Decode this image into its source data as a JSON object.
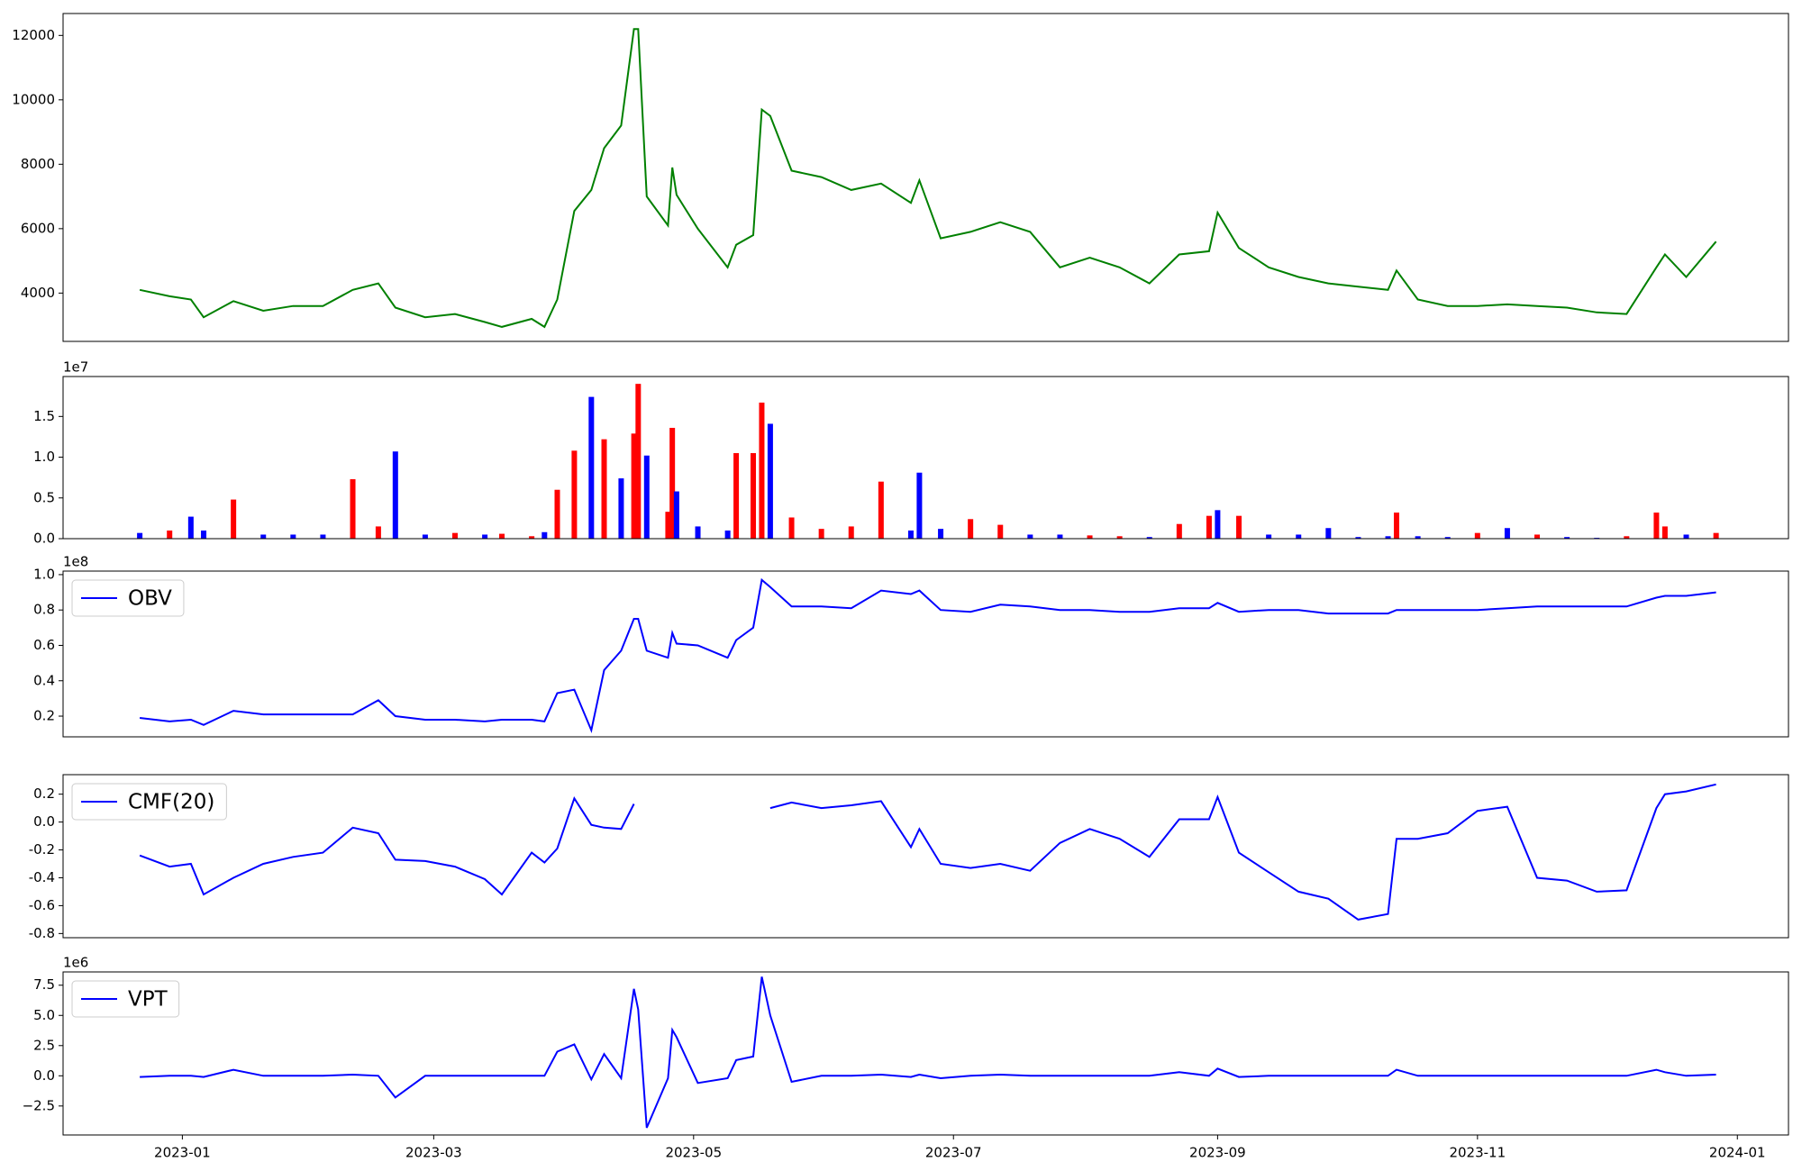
{
  "chart_data": [
    {
      "type": "line",
      "x": [
        "2022-12-22",
        "2022-12-29",
        "2023-01-03",
        "2023-01-06",
        "2023-01-13",
        "2023-01-20",
        "2023-01-27",
        "2023-02-03",
        "2023-02-10",
        "2023-02-16",
        "2023-02-20",
        "2023-02-27",
        "2023-03-06",
        "2023-03-13",
        "2023-03-17",
        "2023-03-24",
        "2023-03-27",
        "2023-03-30",
        "2023-04-03",
        "2023-04-07",
        "2023-04-10",
        "2023-04-14",
        "2023-04-17",
        "2023-04-18",
        "2023-04-20",
        "2023-04-25",
        "2023-04-26",
        "2023-04-27",
        "2023-05-02",
        "2023-05-09",
        "2023-05-11",
        "2023-05-15",
        "2023-05-17",
        "2023-05-19",
        "2023-05-24",
        "2023-05-31",
        "2023-06-07",
        "2023-06-14",
        "2023-06-21",
        "2023-06-23",
        "2023-06-28",
        "2023-07-05",
        "2023-07-12",
        "2023-07-19",
        "2023-07-26",
        "2023-08-02",
        "2023-08-09",
        "2023-08-16",
        "2023-08-23",
        "2023-08-30",
        "2023-09-01",
        "2023-09-06",
        "2023-09-13",
        "2023-09-20",
        "2023-09-27",
        "2023-10-04",
        "2023-10-11",
        "2023-10-13",
        "2023-10-18",
        "2023-10-25",
        "2023-11-01",
        "2023-11-08",
        "2023-11-15",
        "2023-11-22",
        "2023-11-29",
        "2023-12-06",
        "2023-12-13",
        "2023-12-15",
        "2023-12-20",
        "2023-12-27"
      ],
      "series": [
        {
          "color": "#008000",
          "values": [
            4100,
            3900,
            3800,
            3250,
            3750,
            3450,
            3600,
            3600,
            4100,
            4300,
            3550,
            3250,
            3350,
            3100,
            2950,
            3200,
            2950,
            3800,
            6550,
            7200,
            8500,
            9200,
            12200,
            12200,
            7000,
            6100,
            7900,
            7050,
            6000,
            4800,
            5500,
            5800,
            9700,
            9500,
            7800,
            7600,
            7200,
            7400,
            6800,
            7500,
            5700,
            5900,
            6200,
            5900,
            4800,
            5100,
            4800,
            4300,
            5200,
            5300,
            6500,
            5400,
            4800,
            4500,
            4300,
            4200,
            4100,
            4700,
            3800,
            3600,
            3600,
            3650,
            3600,
            3550,
            3400,
            3350,
            4800,
            5200,
            4500,
            5600
          ]
        }
      ],
      "xlim": [
        "2022-12-04",
        "2024-01-13"
      ],
      "ylim": [
        2500,
        12680
      ],
      "yticks": [
        4000,
        6000,
        8000,
        10000,
        12000
      ]
    },
    {
      "type": "bar",
      "x": [
        "2022-12-22",
        "2022-12-29",
        "2023-01-03",
        "2023-01-06",
        "2023-01-13",
        "2023-01-20",
        "2023-01-27",
        "2023-02-03",
        "2023-02-10",
        "2023-02-16",
        "2023-02-20",
        "2023-02-27",
        "2023-03-06",
        "2023-03-13",
        "2023-03-17",
        "2023-03-24",
        "2023-03-27",
        "2023-03-30",
        "2023-04-03",
        "2023-04-07",
        "2023-04-10",
        "2023-04-14",
        "2023-04-17",
        "2023-04-18",
        "2023-04-20",
        "2023-04-25",
        "2023-04-26",
        "2023-04-27",
        "2023-05-02",
        "2023-05-09",
        "2023-05-11",
        "2023-05-15",
        "2023-05-17",
        "2023-05-19",
        "2023-05-24",
        "2023-05-31",
        "2023-06-07",
        "2023-06-14",
        "2023-06-21",
        "2023-06-23",
        "2023-06-28",
        "2023-07-05",
        "2023-07-12",
        "2023-07-19",
        "2023-07-26",
        "2023-08-02",
        "2023-08-09",
        "2023-08-16",
        "2023-08-23",
        "2023-08-30",
        "2023-09-01",
        "2023-09-06",
        "2023-09-13",
        "2023-09-20",
        "2023-09-27",
        "2023-10-04",
        "2023-10-11",
        "2023-10-13",
        "2023-10-18",
        "2023-10-25",
        "2023-11-01",
        "2023-11-08",
        "2023-11-15",
        "2023-11-22",
        "2023-11-29",
        "2023-12-06",
        "2023-12-13",
        "2023-12-15",
        "2023-12-20",
        "2023-12-27"
      ],
      "values": [
        0.07,
        0.1,
        0.27,
        0.1,
        0.48,
        0.05,
        0.05,
        0.05,
        0.73,
        0.15,
        1.07,
        0.05,
        0.07,
        0.05,
        0.06,
        0.03,
        0.08,
        0.6,
        1.08,
        1.74,
        1.22,
        0.74,
        1.29,
        1.9,
        1.02,
        0.33,
        1.36,
        0.58,
        0.15,
        0.1,
        1.05,
        1.05,
        1.67,
        1.41,
        0.26,
        0.12,
        0.15,
        0.7,
        0.1,
        0.81,
        0.12,
        0.24,
        0.17,
        0.05,
        0.05,
        0.04,
        0.03,
        0.02,
        0.18,
        0.28,
        0.35,
        0.28,
        0.05,
        0.05,
        0.13,
        0.02,
        0.03,
        0.32,
        0.03,
        0.02,
        0.07,
        0.13,
        0.05,
        0.02,
        0.01,
        0.03,
        0.32,
        0.15,
        0.05,
        0.07
      ],
      "colors": [
        "#0000ff",
        "#ff0000",
        "#0000ff",
        "#0000ff",
        "#ff0000",
        "#0000ff",
        "#0000ff",
        "#0000ff",
        "#ff0000",
        "#ff0000",
        "#0000ff",
        "#0000ff",
        "#ff0000",
        "#0000ff",
        "#ff0000",
        "#ff0000",
        "#0000ff",
        "#ff0000",
        "#ff0000",
        "#0000ff",
        "#ff0000",
        "#0000ff",
        "#ff0000",
        "#ff0000",
        "#0000ff",
        "#ff0000",
        "#ff0000",
        "#0000ff",
        "#0000ff",
        "#0000ff",
        "#ff0000",
        "#ff0000",
        "#ff0000",
        "#0000ff",
        "#ff0000",
        "#ff0000",
        "#ff0000",
        "#ff0000",
        "#0000ff",
        "#0000ff",
        "#0000ff",
        "#ff0000",
        "#ff0000",
        "#0000ff",
        "#0000ff",
        "#ff0000",
        "#ff0000",
        "#0000ff",
        "#ff0000",
        "#ff0000",
        "#0000ff",
        "#ff0000",
        "#0000ff",
        "#0000ff",
        "#0000ff",
        "#0000ff",
        "#0000ff",
        "#ff0000",
        "#0000ff",
        "#0000ff",
        "#ff0000",
        "#0000ff",
        "#ff0000",
        "#0000ff",
        "#0000ff",
        "#ff0000",
        "#ff0000",
        "#ff0000",
        "#0000ff",
        "#ff0000"
      ],
      "xlim": [
        "2022-12-04",
        "2024-01-13"
      ],
      "ylim": [
        0,
        1.99
      ],
      "y_offset_label": "1e7",
      "yticks": [
        {
          "value": 0,
          "label": "0.0"
        },
        0.5,
        {
          "value": 1,
          "label": "1.0"
        },
        1.5
      ]
    },
    {
      "type": "line",
      "x": [
        "2022-12-22",
        "2022-12-29",
        "2023-01-03",
        "2023-01-06",
        "2023-01-13",
        "2023-01-20",
        "2023-01-27",
        "2023-02-03",
        "2023-02-10",
        "2023-02-16",
        "2023-02-20",
        "2023-02-27",
        "2023-03-06",
        "2023-03-13",
        "2023-03-17",
        "2023-03-24",
        "2023-03-27",
        "2023-03-30",
        "2023-04-03",
        "2023-04-07",
        "2023-04-10",
        "2023-04-14",
        "2023-04-17",
        "2023-04-18",
        "2023-04-20",
        "2023-04-25",
        "2023-04-26",
        "2023-04-27",
        "2023-05-02",
        "2023-05-09",
        "2023-05-11",
        "2023-05-15",
        "2023-05-17",
        "2023-05-19",
        "2023-05-24",
        "2023-05-31",
        "2023-06-07",
        "2023-06-14",
        "2023-06-21",
        "2023-06-23",
        "2023-06-28",
        "2023-07-05",
        "2023-07-12",
        "2023-07-19",
        "2023-07-26",
        "2023-08-02",
        "2023-08-09",
        "2023-08-16",
        "2023-08-23",
        "2023-08-30",
        "2023-09-01",
        "2023-09-06",
        "2023-09-13",
        "2023-09-20",
        "2023-09-27",
        "2023-10-04",
        "2023-10-11",
        "2023-10-13",
        "2023-10-18",
        "2023-10-25",
        "2023-11-01",
        "2023-11-08",
        "2023-11-15",
        "2023-11-22",
        "2023-11-29",
        "2023-12-06",
        "2023-12-13",
        "2023-12-15",
        "2023-12-20",
        "2023-12-27"
      ],
      "series": [
        {
          "name": "OBV",
          "color": "#0000ff",
          "values": [
            0.19,
            0.17,
            0.18,
            0.15,
            0.23,
            0.21,
            0.21,
            0.21,
            0.21,
            0.29,
            0.2,
            0.18,
            0.18,
            0.17,
            0.18,
            0.18,
            0.17,
            0.33,
            0.35,
            0.12,
            0.46,
            0.57,
            0.75,
            0.75,
            0.57,
            0.53,
            0.67,
            0.61,
            0.6,
            0.53,
            0.63,
            0.7,
            0.97,
            0.93,
            0.82,
            0.82,
            0.81,
            0.91,
            0.89,
            0.91,
            0.8,
            0.79,
            0.83,
            0.82,
            0.8,
            0.8,
            0.79,
            0.79,
            0.81,
            0.81,
            0.84,
            0.79,
            0.8,
            0.8,
            0.78,
            0.78,
            0.78,
            0.8,
            0.8,
            0.8,
            0.8,
            0.81,
            0.82,
            0.82,
            0.82,
            0.82,
            0.87,
            0.88,
            0.88,
            0.9
          ]
        }
      ],
      "xlim": [
        "2022-12-04",
        "2024-01-13"
      ],
      "ylim": [
        0.083,
        1.02
      ],
      "y_offset_label": "1e8",
      "legend": "upper left",
      "yticks": [
        0.2,
        0.4,
        0.6,
        0.8,
        {
          "value": 1,
          "label": "1.0"
        }
      ]
    },
    {
      "type": "line",
      "x": [
        "2022-12-22",
        "2022-12-29",
        "2023-01-03",
        "2023-01-06",
        "2023-01-13",
        "2023-01-20",
        "2023-01-27",
        "2023-02-03",
        "2023-02-10",
        "2023-02-16",
        "2023-02-20",
        "2023-02-27",
        "2023-03-06",
        "2023-03-13",
        "2023-03-17",
        "2023-03-24",
        "2023-03-27",
        "2023-03-30",
        "2023-04-03",
        "2023-04-07",
        "2023-04-10",
        "2023-04-14",
        "2023-04-17",
        "2023-04-18",
        "2023-04-20",
        "2023-04-25",
        "2023-04-26",
        "2023-04-27",
        "2023-05-02",
        "2023-05-09",
        "2023-05-11",
        "2023-05-15",
        "2023-05-17",
        "2023-05-19",
        "2023-05-24",
        "2023-05-31",
        "2023-06-07",
        "2023-06-14",
        "2023-06-21",
        "2023-06-23",
        "2023-06-28",
        "2023-07-05",
        "2023-07-12",
        "2023-07-19",
        "2023-07-26",
        "2023-08-02",
        "2023-08-09",
        "2023-08-16",
        "2023-08-23",
        "2023-08-30",
        "2023-09-01",
        "2023-09-06",
        "2023-09-13",
        "2023-09-20",
        "2023-09-27",
        "2023-10-04",
        "2023-10-11",
        "2023-10-13",
        "2023-10-18",
        "2023-10-25",
        "2023-11-01",
        "2023-11-08",
        "2023-11-15",
        "2023-11-22",
        "2023-11-29",
        "2023-12-06",
        "2023-12-13",
        "2023-12-15",
        "2023-12-20",
        "2023-12-27"
      ],
      "series": [
        {
          "name": "CMF(20)",
          "color": "#0000ff",
          "values": [
            -0.24,
            -0.32,
            -0.3,
            -0.52,
            -0.4,
            -0.3,
            -0.25,
            -0.22,
            -0.04,
            -0.08,
            -0.27,
            -0.28,
            -0.32,
            -0.41,
            -0.52,
            -0.22,
            -0.29,
            -0.19,
            0.17,
            -0.02,
            -0.04,
            -0.05,
            0.13,
            null,
            null,
            null,
            null,
            null,
            null,
            null,
            null,
            null,
            null,
            0.1,
            0.14,
            0.1,
            0.12,
            0.15,
            -0.18,
            -0.05,
            -0.3,
            -0.33,
            -0.3,
            -0.35,
            -0.15,
            -0.05,
            -0.12,
            -0.25,
            0.02,
            0.02,
            0.18,
            -0.22,
            -0.36,
            -0.5,
            -0.55,
            -0.7,
            -0.66,
            -0.12,
            -0.12,
            -0.08,
            0.08,
            0.11,
            -0.4,
            -0.42,
            -0.5,
            -0.49,
            0.1,
            0.2,
            0.22,
            0.27
          ]
        }
      ],
      "xlim": [
        "2022-12-04",
        "2024-01-13"
      ],
      "ylim": [
        -0.83,
        0.34
      ],
      "legend": "upper left",
      "yticks": [
        -0.8,
        -0.6,
        -0.4,
        -0.2,
        {
          "value": 0,
          "label": "0.0"
        },
        0.2
      ]
    },
    {
      "type": "line",
      "x": [
        "2022-12-22",
        "2022-12-29",
        "2023-01-03",
        "2023-01-06",
        "2023-01-13",
        "2023-01-20",
        "2023-01-27",
        "2023-02-03",
        "2023-02-10",
        "2023-02-16",
        "2023-02-20",
        "2023-02-27",
        "2023-03-06",
        "2023-03-13",
        "2023-03-17",
        "2023-03-24",
        "2023-03-27",
        "2023-03-30",
        "2023-04-03",
        "2023-04-07",
        "2023-04-10",
        "2023-04-14",
        "2023-04-17",
        "2023-04-18",
        "2023-04-20",
        "2023-04-25",
        "2023-04-26",
        "2023-04-27",
        "2023-05-02",
        "2023-05-09",
        "2023-05-11",
        "2023-05-15",
        "2023-05-17",
        "2023-05-19",
        "2023-05-24",
        "2023-05-31",
        "2023-06-07",
        "2023-06-14",
        "2023-06-21",
        "2023-06-23",
        "2023-06-28",
        "2023-07-05",
        "2023-07-12",
        "2023-07-19",
        "2023-07-26",
        "2023-08-02",
        "2023-08-09",
        "2023-08-16",
        "2023-08-23",
        "2023-08-30",
        "2023-09-01",
        "2023-09-06",
        "2023-09-13",
        "2023-09-20",
        "2023-09-27",
        "2023-10-04",
        "2023-10-11",
        "2023-10-13",
        "2023-10-18",
        "2023-10-25",
        "2023-11-01",
        "2023-11-08",
        "2023-11-15",
        "2023-11-22",
        "2023-11-29",
        "2023-12-06",
        "2023-12-13",
        "2023-12-15",
        "2023-12-20",
        "2023-12-27"
      ],
      "series": [
        {
          "name": "VPT",
          "color": "#0000ff",
          "values": [
            -0.1,
            0,
            0,
            -0.1,
            0.5,
            0,
            0,
            0,
            0.1,
            0,
            -1.8,
            0,
            0,
            0,
            0,
            0,
            0,
            2.0,
            2.6,
            -0.3,
            1.8,
            -0.2,
            7.2,
            5.5,
            -4.3,
            -0.2,
            3.8,
            3.2,
            -0.6,
            -0.2,
            1.3,
            1.6,
            8.2,
            5.0,
            -0.5,
            0,
            0,
            0.1,
            -0.1,
            0.1,
            -0.2,
            0,
            0.1,
            0,
            0,
            0,
            0,
            0,
            0.3,
            0,
            0.6,
            -0.1,
            0,
            0,
            0,
            0,
            0,
            0.5,
            0,
            0,
            0,
            0,
            0,
            0,
            0,
            0,
            0.5,
            0.3,
            0,
            0.1
          ]
        }
      ],
      "xlim": [
        "2022-12-04",
        "2024-01-13"
      ],
      "ylim": [
        -4.9,
        8.6
      ],
      "y_offset_label": "1e6",
      "legend": "upper left",
      "yticks": [
        {
          "value": -2.5,
          "label": "−2.5"
        },
        {
          "value": 0,
          "label": "0.0"
        },
        2.5,
        {
          "value": 5,
          "label": "5.0"
        },
        7.5
      ],
      "xticks": [
        {
          "value": "2023-01-01",
          "label": "2023-01"
        },
        {
          "value": "2023-03-01",
          "label": "2023-03"
        },
        {
          "value": "2023-05-01",
          "label": "2023-05"
        },
        {
          "value": "2023-07-01",
          "label": "2023-07"
        },
        {
          "value": "2023-09-01",
          "label": "2023-09"
        },
        {
          "value": "2023-11-01",
          "label": "2023-11"
        },
        {
          "value": "2024-01-01",
          "label": "2024-01"
        }
      ]
    }
  ]
}
